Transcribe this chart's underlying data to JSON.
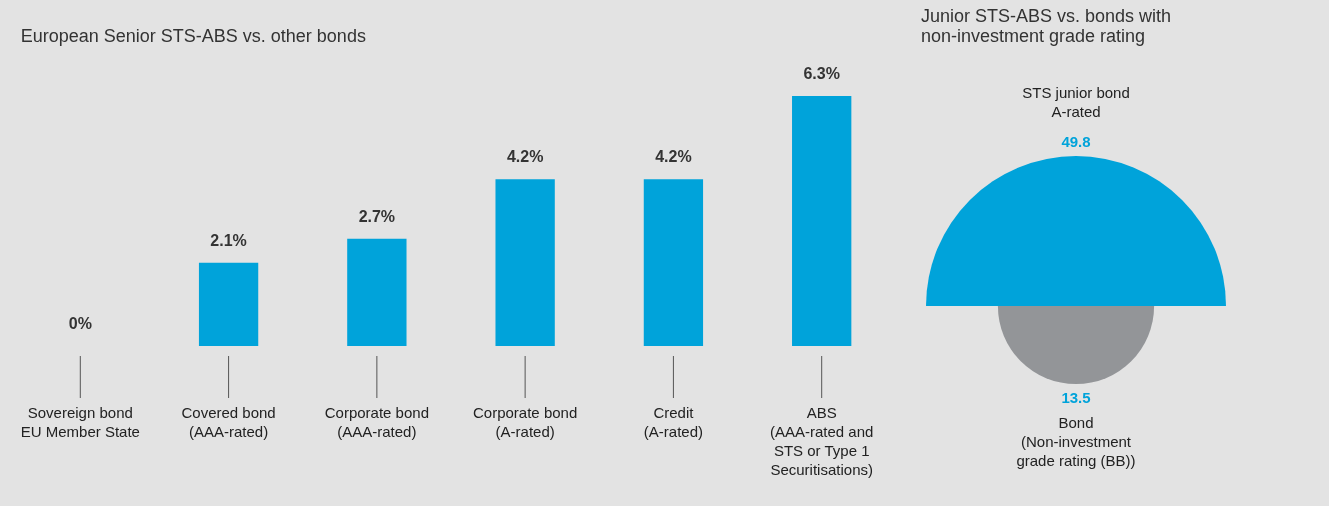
{
  "chart_data": [
    {
      "type": "bar",
      "title": "European Senior STS-ABS vs. other bonds",
      "categories": [
        "Sovereign bond EU Member State",
        "Covered bond (AAA-rated)",
        "Corporate bond (AAA-rated)",
        "Corporate bond (A-rated)",
        "Credit (A-rated)",
        "ABS (AAA-rated and STS or Type 1 Securitisations)"
      ],
      "values": [
        0,
        2.1,
        2.7,
        4.2,
        4.2,
        6.3
      ],
      "color": "#00a3da",
      "value_labels": [
        "0%",
        "2.1%",
        "2.7%",
        "4.2%",
        "4.2%",
        "6.3%"
      ]
    },
    {
      "type": "other",
      "title": "Junior STS-ABS vs. bonds with non-investment grade rating",
      "categories": [
        "STS junior bond A-rated",
        "Bond (Non-investment grade rating (BB))"
      ],
      "values": [
        49.8,
        13.5
      ],
      "colors": [
        "#00a3da",
        "#939598"
      ],
      "data_labels": true
    }
  ]
}
